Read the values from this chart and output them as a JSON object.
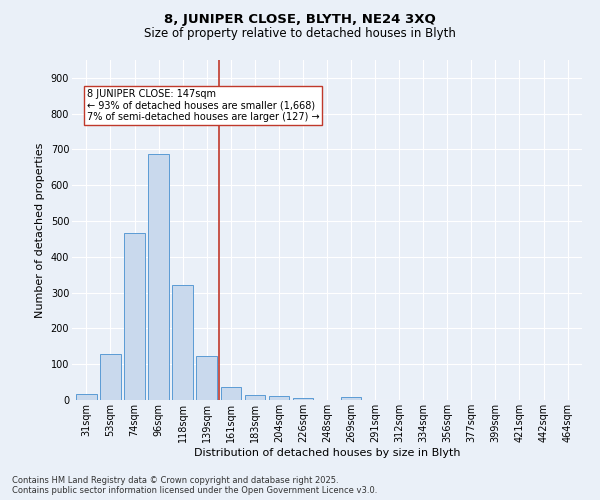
{
  "title_line1": "8, JUNIPER CLOSE, BLYTH, NE24 3XQ",
  "title_line2": "Size of property relative to detached houses in Blyth",
  "xlabel": "Distribution of detached houses by size in Blyth",
  "ylabel": "Number of detached properties",
  "bar_labels": [
    "31sqm",
    "53sqm",
    "74sqm",
    "96sqm",
    "118sqm",
    "139sqm",
    "161sqm",
    "183sqm",
    "204sqm",
    "226sqm",
    "248sqm",
    "269sqm",
    "291sqm",
    "312sqm",
    "334sqm",
    "356sqm",
    "377sqm",
    "399sqm",
    "421sqm",
    "442sqm",
    "464sqm"
  ],
  "bar_values": [
    18,
    128,
    468,
    688,
    320,
    122,
    35,
    15,
    10,
    5,
    0,
    8,
    0,
    0,
    0,
    0,
    0,
    0,
    0,
    0,
    0
  ],
  "bar_color": "#c9d9ed",
  "bar_edge_color": "#5b9bd5",
  "vline_x": 5.5,
  "vline_color": "#c0392b",
  "annotation_line1": "8 JUNIPER CLOSE: 147sqm",
  "annotation_line2": "← 93% of detached houses are smaller (1,668)",
  "annotation_line3": "7% of semi-detached houses are larger (127) →",
  "ylim": [
    0,
    950
  ],
  "yticks": [
    0,
    100,
    200,
    300,
    400,
    500,
    600,
    700,
    800,
    900
  ],
  "background_color": "#eaf0f8",
  "plot_background_color": "#eaf0f8",
  "grid_color": "#ffffff",
  "footer_text": "Contains HM Land Registry data © Crown copyright and database right 2025.\nContains public sector information licensed under the Open Government Licence v3.0.",
  "title_fontsize": 9.5,
  "subtitle_fontsize": 8.5,
  "axis_label_fontsize": 8,
  "tick_fontsize": 7,
  "annotation_fontsize": 7,
  "footer_fontsize": 6
}
